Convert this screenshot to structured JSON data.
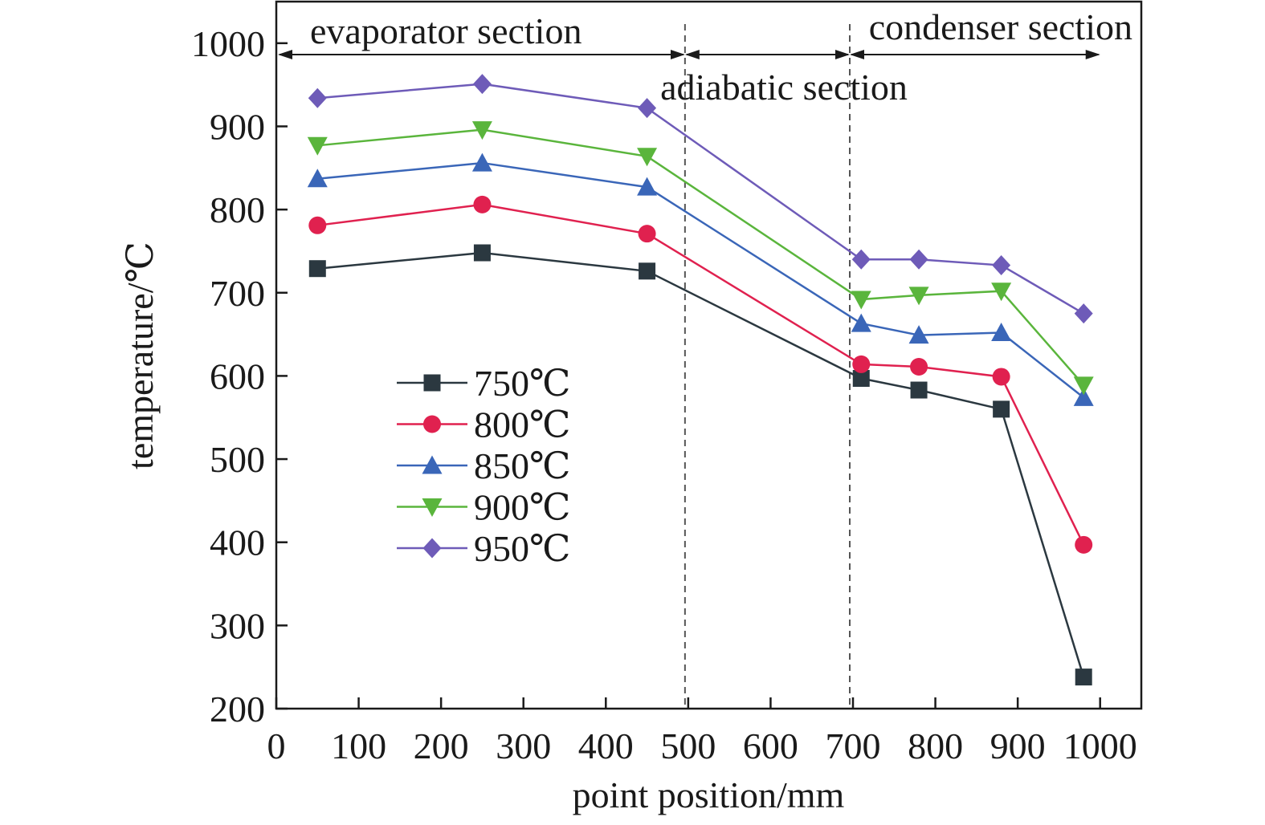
{
  "chart_data": {
    "type": "line",
    "xlabel": "point position/mm",
    "ylabel": "temperature/℃",
    "xlim": [
      0,
      1050
    ],
    "ylim": [
      200,
      1050
    ],
    "xticks": [
      0,
      100,
      200,
      300,
      400,
      500,
      600,
      700,
      800,
      900,
      1000
    ],
    "yticks": [
      200,
      300,
      400,
      500,
      600,
      700,
      800,
      900,
      1000
    ],
    "x": [
      50,
      250,
      450,
      710,
      780,
      880,
      980
    ],
    "series": [
      {
        "name": "750℃",
        "color": "#2b3840",
        "marker": "square",
        "values": [
          729,
          748,
          726,
          597,
          583,
          560,
          238
        ]
      },
      {
        "name": "800℃",
        "color": "#e0214f",
        "marker": "circle",
        "values": [
          781,
          806,
          771,
          614,
          611,
          599,
          397
        ]
      },
      {
        "name": "850℃",
        "color": "#3a66b8",
        "marker": "triangle-up",
        "values": [
          837,
          856,
          827,
          663,
          649,
          652,
          574
        ]
      },
      {
        "name": "900℃",
        "color": "#5ab53c",
        "marker": "triangle-down",
        "values": [
          877,
          896,
          864,
          692,
          697,
          702,
          589
        ]
      },
      {
        "name": "950℃",
        "color": "#6e5bb8",
        "marker": "diamond",
        "values": [
          934,
          951,
          922,
          740,
          740,
          733,
          675
        ]
      }
    ],
    "section_dividers": [
      500,
      700
    ],
    "sections": [
      {
        "label": "evaporator section",
        "from": 0,
        "to": 500
      },
      {
        "label": "adiabatic section",
        "from": 500,
        "to": 700
      },
      {
        "label": "condenser section",
        "from": 700,
        "to": 1000
      }
    ],
    "legend_position": "center-left",
    "grid": false
  }
}
